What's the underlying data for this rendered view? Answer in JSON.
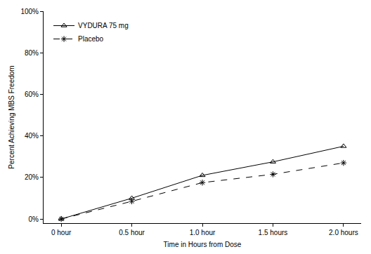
{
  "chart_data": {
    "type": "line",
    "x_label": "Time in Hours from Dose",
    "y_label": "Percent Achieving MBS Freedom",
    "categories": [
      "0 hour",
      "0.5 hour",
      "1.0 hour",
      "1.5 hours",
      "2.0 hours"
    ],
    "series": [
      {
        "name": "VYDURA 75 mg",
        "color": "#000000",
        "marker": "triangle-up-open",
        "line_style": "solid",
        "values": [
          0,
          10,
          21,
          27.5,
          35
        ]
      },
      {
        "name": "Placebo",
        "color": "#000000",
        "marker": "asterisk-open",
        "line_style": "dash",
        "values": [
          0,
          8.5,
          17.5,
          21.5,
          27
        ]
      }
    ],
    "ylim": [
      -2,
      100
    ],
    "yticks": [
      {
        "value": 0,
        "label": "0%"
      },
      {
        "value": 20,
        "label": "20%"
      },
      {
        "value": 40,
        "label": "40%"
      },
      {
        "value": 60,
        "label": "60%"
      },
      {
        "value": 80,
        "label": "80%"
      },
      {
        "value": 100,
        "label": "100%"
      }
    ],
    "grid": false,
    "legend": "top-left"
  }
}
